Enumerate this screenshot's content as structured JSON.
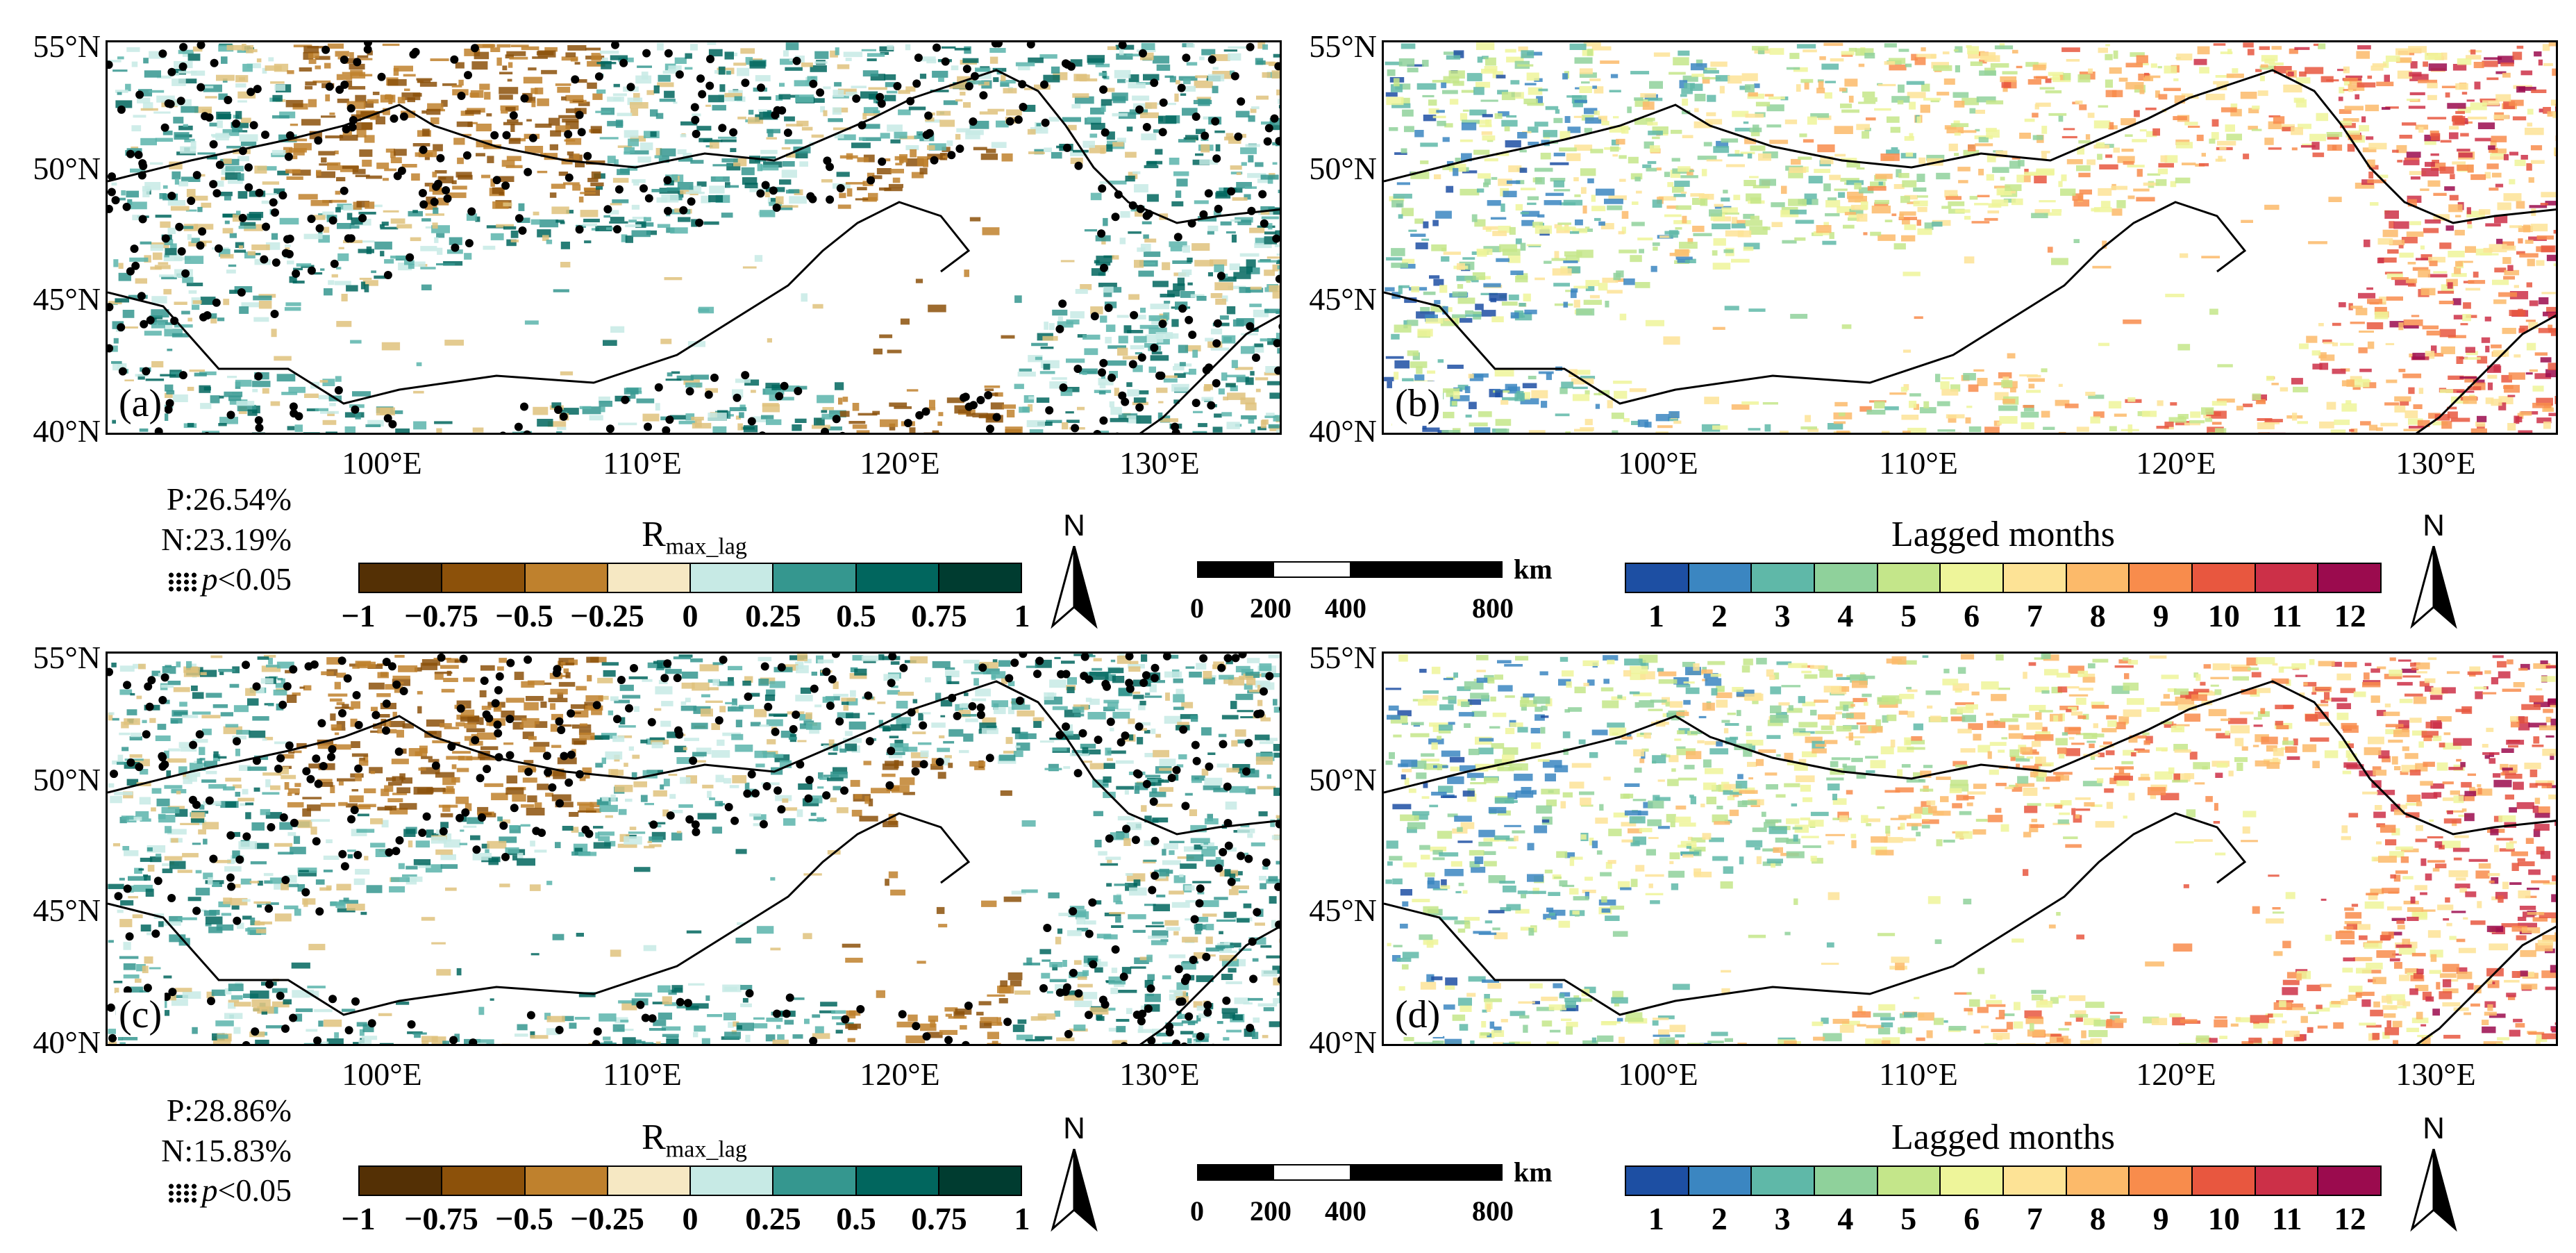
{
  "lat_labels": [
    "55°N",
    "50°N",
    "45°N",
    "40°N"
  ],
  "lon_labels": [
    "100°E",
    "110°E",
    "120°E",
    "130°E"
  ],
  "panels": [
    {
      "label": "(a)",
      "type": "correlation"
    },
    {
      "label": "(b)",
      "type": "lag"
    },
    {
      "label": "(c)",
      "type": "correlation"
    },
    {
      "label": "(d)",
      "type": "lag"
    }
  ],
  "stats": [
    {
      "p": "P:26.54%",
      "n": "N:23.19%",
      "sig": "p",
      "sig_rest": "<0.05"
    },
    {
      "p": "P:28.86%",
      "n": "N:15.83%",
      "sig": "p",
      "sig_rest": "<0.05"
    }
  ],
  "correlation_legend": {
    "title_main": "R",
    "title_sub": "max_lag",
    "ticks": [
      "−1",
      "−0.75",
      "−0.5",
      "−0.25",
      "0",
      "0.25",
      "0.5",
      "0.75",
      "1"
    ],
    "colors": [
      "#543005",
      "#8c510a",
      "#bf812d",
      "#f6e8c3",
      "#c7eae5",
      "#35978f",
      "#01665e",
      "#003c30"
    ]
  },
  "lag_legend": {
    "title": "Lagged months",
    "ticks": [
      "1",
      "2",
      "3",
      "4",
      "5",
      "6",
      "7",
      "8",
      "9",
      "10",
      "11",
      "12"
    ],
    "colors": [
      "#1d4fa3",
      "#3b86c1",
      "#5fb8a8",
      "#8fd19b",
      "#c4e68a",
      "#eef59a",
      "#fde396",
      "#fcba6a",
      "#f88c4c",
      "#e8573f",
      "#cc3048",
      "#9b0b4e"
    ]
  },
  "scale_bar": {
    "unit": "km",
    "ticks": [
      "0",
      "200",
      "400",
      "800"
    ]
  },
  "north_arrow": {
    "label": "N"
  }
}
